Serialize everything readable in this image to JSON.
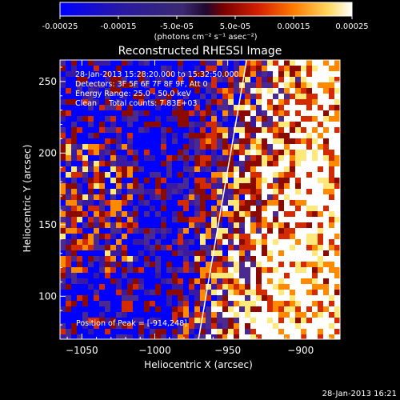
{
  "colorbar": {
    "tick_labels": [
      "-0.00025",
      "-0.00015",
      "-5.0e-05",
      "5.0e-05",
      "0.00015",
      "0.00025"
    ],
    "tick_values": [
      -0.00025,
      -0.00015,
      -5e-05,
      5e-05,
      0.00015,
      0.00025
    ],
    "range": [
      -0.00025,
      0.00025
    ],
    "units": "(photons cm⁻² s⁻¹ asec⁻²)",
    "colors": [
      "#0000ff",
      "#3a1aa0",
      "#4a2a90",
      "#8a0a00",
      "#d42a00",
      "#ff8a00",
      "#ffe87a",
      "#ffffff"
    ]
  },
  "footer_timestamp": "28-Jan-2013 16:21",
  "chart_data": {
    "type": "heatmap",
    "title": "Reconstructed RHESSI Image",
    "xlabel": "Heliocentric X (arcsec)",
    "ylabel": "Heliocentric Y (arcsec)",
    "xlim": [
      -1065,
      -873
    ],
    "ylim": [
      70,
      265
    ],
    "x_ticks": [
      -1050,
      -1000,
      -950,
      -900
    ],
    "x_tick_labels": [
      "−1050",
      "−1000",
      "−950",
      "−900"
    ],
    "y_ticks": [
      100,
      150,
      200,
      250
    ],
    "y_tick_labels": [
      "100",
      "150",
      "200",
      "250"
    ],
    "info_lines": [
      "28-Jan-2013 15:28:20.000 to 15:32:50.000",
      "Detectors: 3F 5F 6F 7F 8F 9F, Att 0",
      "Energy Range: 25.0 - 50.0 keV",
      "Clean     Total counts: 7.83E+03"
    ],
    "peak_label": "Position of Peak = [-914,248]",
    "limb_line": {
      "x": [
        -970,
        -937
      ],
      "y": [
        70,
        265
      ]
    },
    "grid": false
  }
}
